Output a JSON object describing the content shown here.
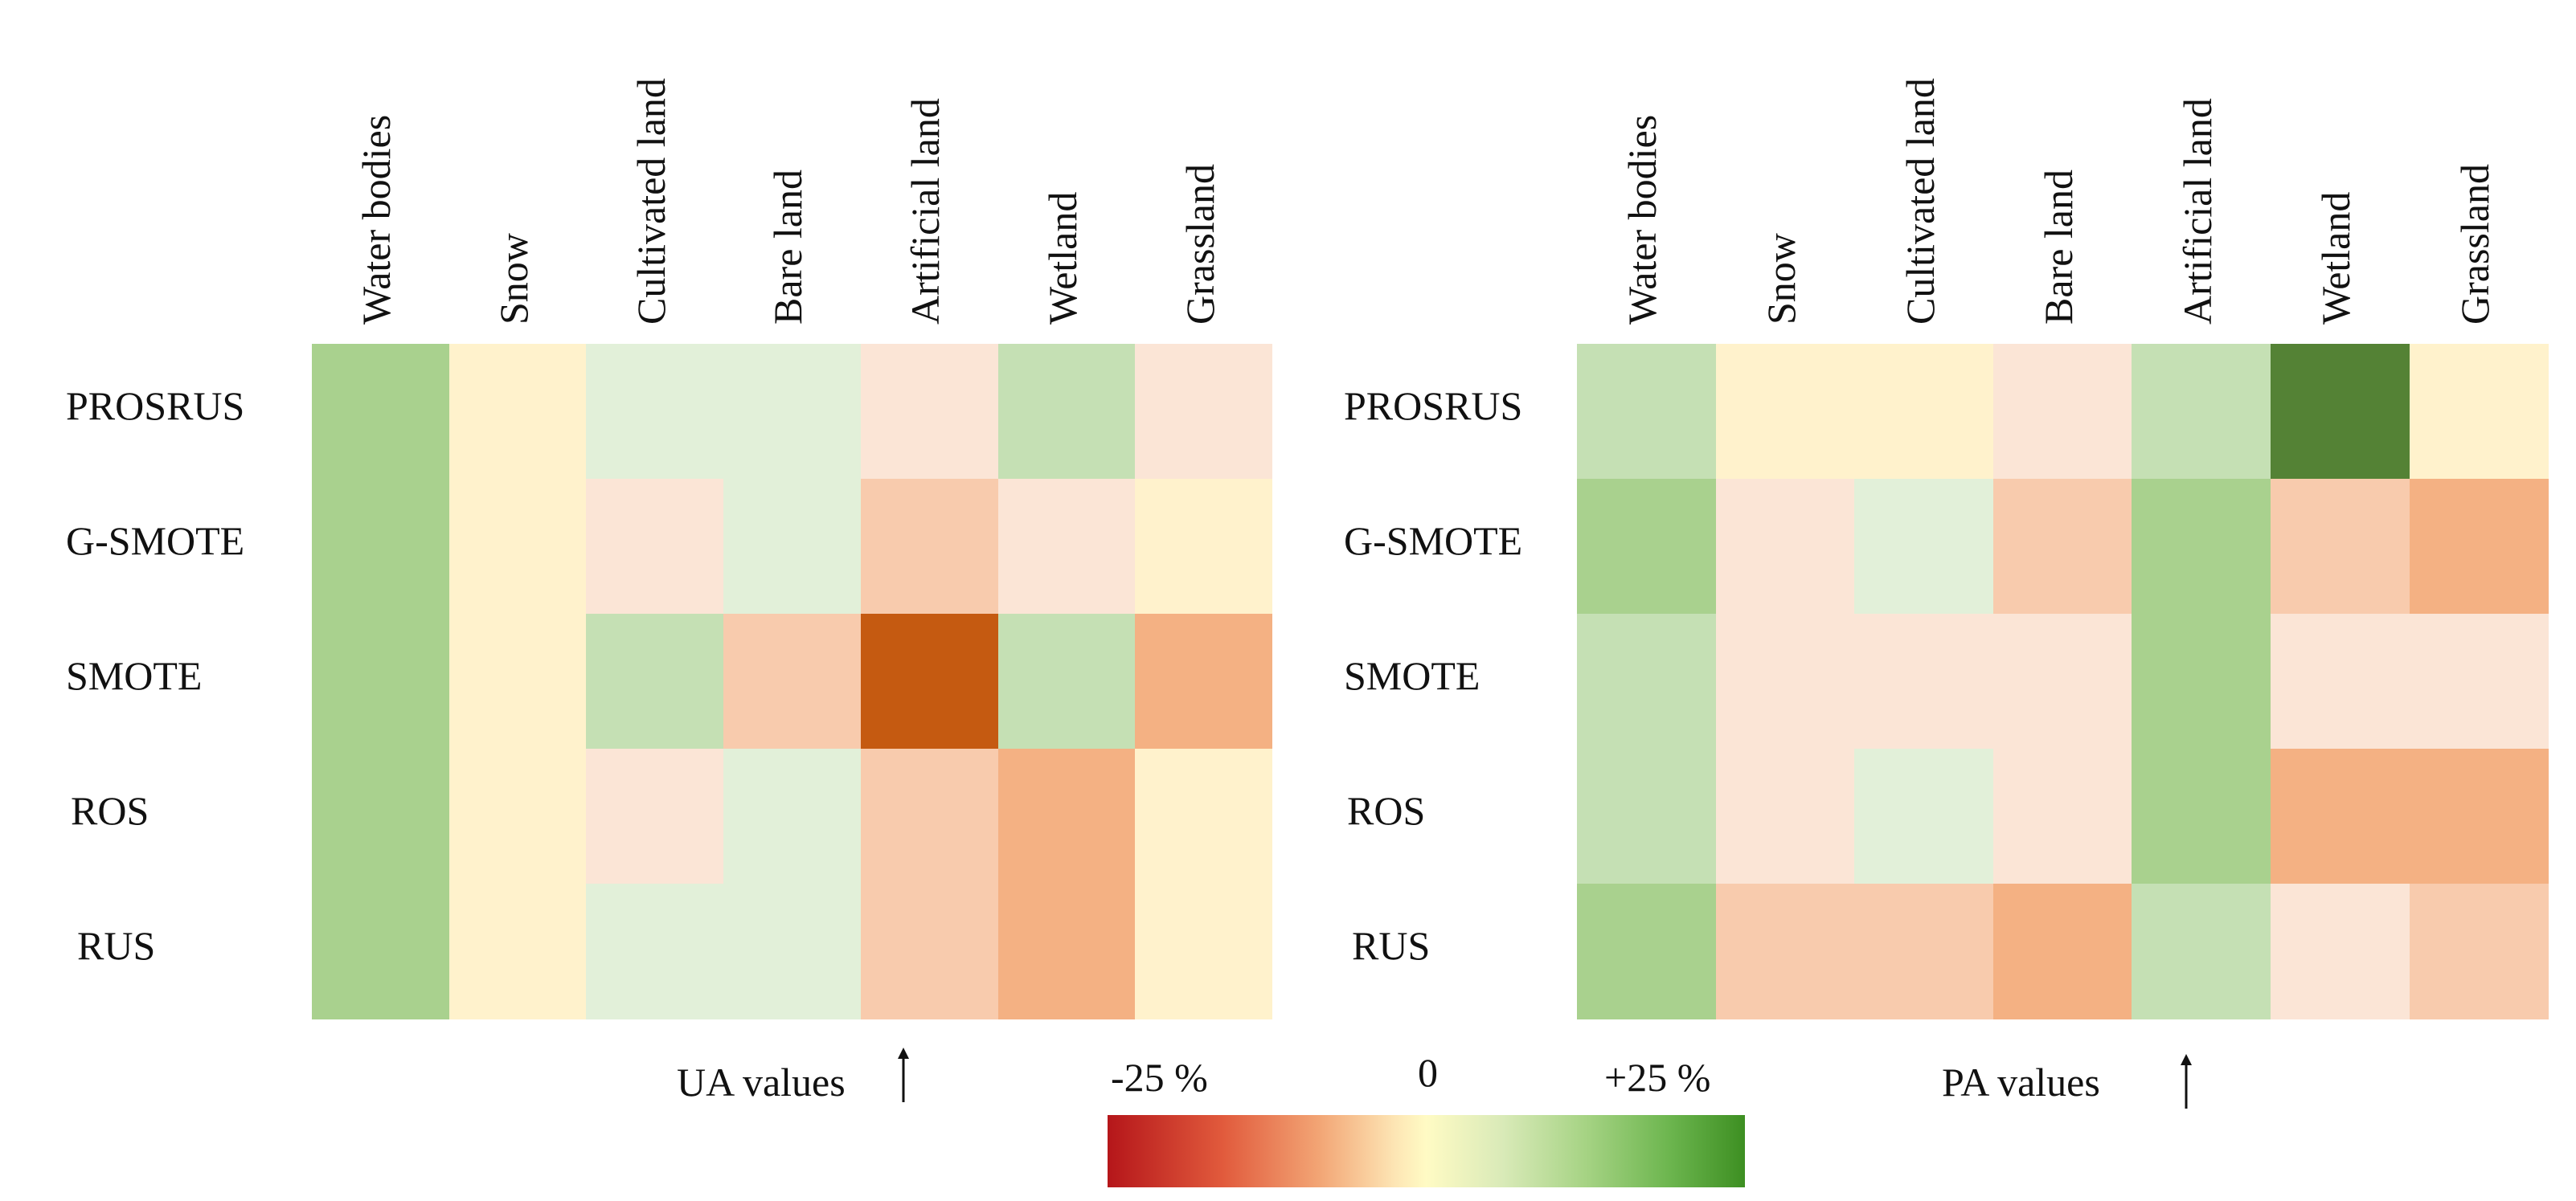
{
  "chart_data": [
    {
      "type": "heatmap",
      "name": "UA values",
      "columns": [
        "Water bodies",
        "Snow",
        "Cultivated land",
        "Bare land",
        "Artificial land",
        "Wetland",
        "Grassland"
      ],
      "rows": [
        "PROSRUS",
        "G-SMOTE",
        "SMOTE",
        "ROS",
        "RUS"
      ],
      "values": [
        [
          10,
          2,
          4,
          4,
          -2,
          7,
          -2
        ],
        [
          10,
          2,
          -2,
          4,
          -5,
          -2,
          2
        ],
        [
          10,
          2,
          7,
          -5,
          -20,
          7,
          -7
        ],
        [
          10,
          2,
          -2,
          4,
          -5,
          -7,
          2
        ],
        [
          10,
          2,
          4,
          4,
          -5,
          -7,
          2
        ]
      ],
      "caption": "UA values",
      "vmin": -25,
      "vmax": 25
    },
    {
      "type": "heatmap",
      "name": "PA values",
      "columns": [
        "Water bodies",
        "Snow",
        "Cultivated land",
        "Bare land",
        "Artificial land",
        "Wetland",
        "Grassland"
      ],
      "rows": [
        "PROSRUS",
        "G-SMOTE",
        "SMOTE",
        "ROS",
        "RUS"
      ],
      "values": [
        [
          7,
          2,
          2,
          -2,
          7,
          25,
          2
        ],
        [
          10,
          -2,
          4,
          -5,
          10,
          -5,
          -7
        ],
        [
          7,
          -2,
          -2,
          -2,
          10,
          -2,
          -2
        ],
        [
          7,
          -2,
          4,
          -2,
          10,
          -7,
          -7
        ],
        [
          10,
          -5,
          -5,
          -7,
          7,
          -2,
          -5
        ]
      ],
      "caption": "PA values",
      "vmin": -25,
      "vmax": 25
    }
  ],
  "legend": {
    "min_label": "-25 %",
    "mid_label": "0",
    "max_label": "+25 %",
    "colors": {
      "neg_strong": "#b5161a",
      "neutral": "#fffbc4",
      "pos_strong": "#3d8f22"
    }
  },
  "palette": {
    "p25": "#548235",
    "p10": "#a9d18e",
    "p7": "#c5e0b4",
    "p4": "#e2f0d9",
    "p2": "#fff2cc",
    "n2": "#fbe5d6",
    "n5": "#f8cbad",
    "n7": "#f4b183",
    "n20": "#c55a11"
  }
}
